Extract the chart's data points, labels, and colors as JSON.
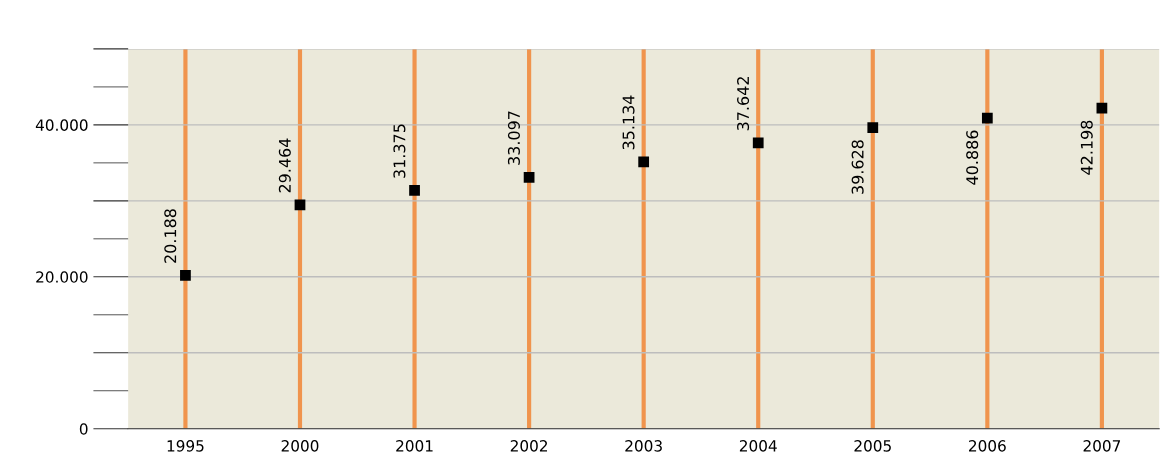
{
  "chart_data": {
    "type": "scatter",
    "categories": [
      "1995",
      "2000",
      "2001",
      "2002",
      "2003",
      "2004",
      "2005",
      "2006",
      "2007"
    ],
    "values": [
      20188,
      29464,
      31375,
      33097,
      35134,
      37642,
      39628,
      40886,
      42198
    ],
    "value_labels": [
      "20.188",
      "29.464",
      "31.375",
      "33.097",
      "35.134",
      "37.642",
      "39.628",
      "40.886",
      "42.198"
    ],
    "color": "#000000",
    "ylim": [
      0,
      50000
    ],
    "yticks": [
      0,
      {
        "value": 10000,
        "label": null
      },
      {
        "value": 20000,
        "label": "20.000"
      },
      {
        "value": 30000,
        "label": null
      },
      {
        "value": 40000,
        "label": "40.000"
      },
      {
        "value": 50000,
        "label": null
      }
    ],
    "grid": true
  }
}
